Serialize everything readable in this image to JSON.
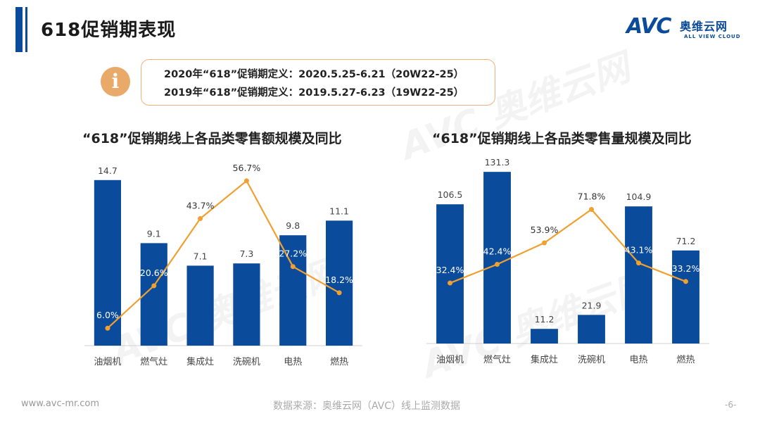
{
  "header": {
    "title": "618促销期表现"
  },
  "logo": {
    "mark": "AVC",
    "cn": "奥维云网",
    "en": "ALL VIEW CLOUD"
  },
  "info": {
    "icon": "info-icon",
    "line1": "2020年“618”促销期定义：2020.5.25-6.21（20W22-25）",
    "line2": "2019年“618”促销期定义：2019.5.27-6.23（19W22-25）"
  },
  "colors": {
    "bar": "#0b4b9c",
    "line": "#f0a030",
    "accent": "#e9a968"
  },
  "chart_data": [
    {
      "type": "bar",
      "title": "“618”促销期线上各品类零售额规模及同比",
      "categories": [
        "油烟机",
        "燃气灶",
        "集成灶",
        "洗碗机",
        "电热",
        "燃热"
      ],
      "series": [
        {
          "values": [
            14.7,
            9.1,
            7.1,
            7.3,
            9.8,
            11.1
          ],
          "labels": [
            "14.7",
            "9.1",
            "7.1",
            "7.3",
            "9.8",
            "11.1"
          ]
        },
        {
          "values": [
            6.0,
            20.6,
            43.7,
            56.7,
            27.2,
            18.2
          ],
          "labels": [
            "6.0%",
            "20.6%",
            "43.7%",
            "56.7%",
            "27.2%",
            "18.2%"
          ],
          "type": "line"
        }
      ],
      "ylim": [
        0,
        16
      ],
      "y2lim": [
        0,
        62
      ],
      "grid": false
    },
    {
      "type": "bar",
      "title": "“618”促销期线上各品类零售量规模及同比",
      "categories": [
        "油烟机",
        "燃气灶",
        "集成灶",
        "洗碗机",
        "电热",
        "燃热"
      ],
      "series": [
        {
          "values": [
            106.5,
            131.3,
            11.2,
            21.9,
            104.9,
            71.2
          ],
          "labels": [
            "106.5",
            "131.3",
            "11.2",
            "21.9",
            "104.9",
            "71.2"
          ]
        },
        {
          "values": [
            32.4,
            42.4,
            53.9,
            71.8,
            43.1,
            33.2
          ],
          "labels": [
            "32.4%",
            "42.4%",
            "53.9%",
            "71.8%",
            "43.1%",
            "33.2%"
          ],
          "type": "line"
        }
      ],
      "ylim": [
        0,
        140
      ],
      "y2lim": [
        0,
        98
      ],
      "grid": false
    }
  ],
  "footer": {
    "website": "www.avc-mr.com",
    "source": "数据来源：奥维云网（AVC）线上监测数据",
    "page": "-6-"
  }
}
